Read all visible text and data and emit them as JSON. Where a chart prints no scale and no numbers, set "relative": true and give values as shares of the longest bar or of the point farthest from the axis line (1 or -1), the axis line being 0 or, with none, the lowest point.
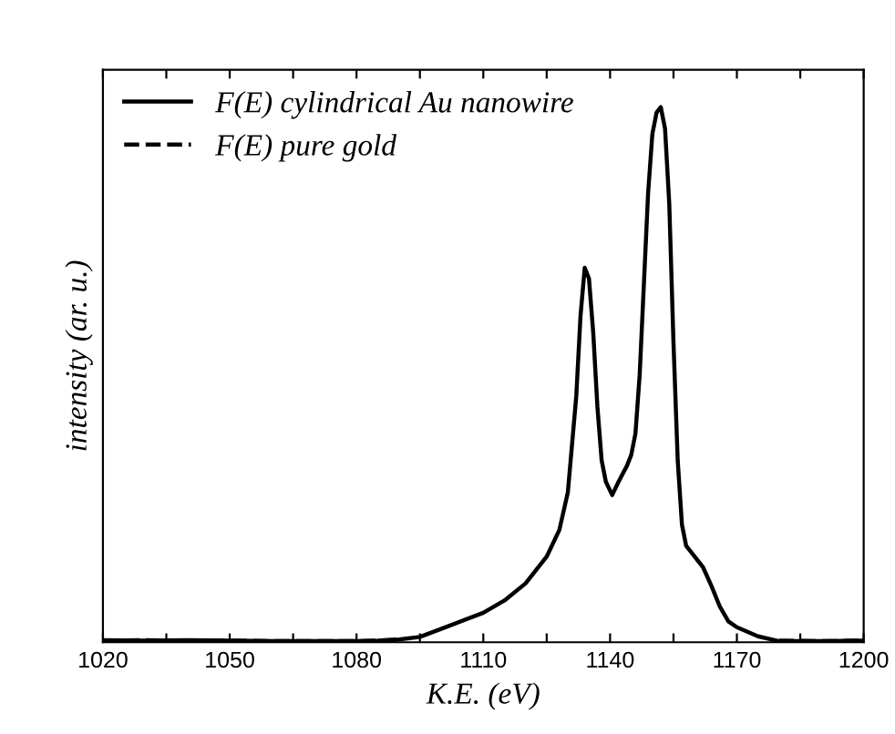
{
  "chart_data": {
    "type": "line",
    "relative": true,
    "xlabel": "K.E. (eV)",
    "ylabel": "intensity (ar. u.)",
    "xlim": [
      1020,
      1200
    ],
    "xticks": [
      1020,
      {
        "value": 1035,
        "label": null
      },
      1050,
      {
        "value": 1065,
        "label": null
      },
      1080,
      {
        "value": 1095,
        "label": null
      },
      1110,
      {
        "value": 1125,
        "label": null
      },
      1140,
      {
        "value": 1155,
        "label": null
      },
      1170,
      {
        "value": 1185,
        "label": null
      },
      1200
    ],
    "legend": "top left",
    "grid": false,
    "series": [
      {
        "name": "F(E) cylindrical Au nanowire",
        "color": "#000000",
        "line_style": "solid",
        "x": [
          1020,
          1030,
          1040,
          1050,
          1060,
          1070,
          1080,
          1085,
          1090,
          1095,
          1100,
          1110,
          1115,
          1120,
          1125,
          1128,
          1130,
          1132,
          1133,
          1134,
          1135,
          1136,
          1137,
          1138,
          1139,
          1140.5,
          1142,
          1144,
          1145,
          1146,
          1147,
          1148,
          1149,
          1150,
          1151,
          1152,
          1153,
          1154,
          1155,
          1156,
          1157,
          1158,
          1160,
          1162,
          1164,
          1166,
          1168,
          1170,
          1175,
          1180,
          1190,
          1200
        ],
        "values": [
          0.004,
          0.003,
          0.004,
          0.003,
          0.002,
          0.002,
          0.002,
          0.003,
          0.005,
          0.01,
          0.025,
          0.055,
          0.078,
          0.11,
          0.16,
          0.21,
          0.28,
          0.46,
          0.61,
          0.7,
          0.68,
          0.58,
          0.44,
          0.34,
          0.3,
          0.275,
          0.3,
          0.33,
          0.35,
          0.39,
          0.5,
          0.67,
          0.84,
          0.95,
          0.99,
          1.0,
          0.96,
          0.82,
          0.56,
          0.34,
          0.22,
          0.18,
          0.16,
          0.14,
          0.105,
          0.066,
          0.039,
          0.028,
          0.011,
          0.002,
          0.002,
          0.003
        ]
      },
      {
        "name": "F(E) pure gold",
        "color": "#000000",
        "line_style": "dashed",
        "x": [
          1020,
          1030,
          1040,
          1050,
          1060,
          1070,
          1080,
          1085,
          1090,
          1135,
          1180,
          1190,
          1200
        ],
        "values": [
          0.003,
          0.004,
          0.003,
          0.003,
          0.002,
          0.002,
          0.002,
          0.003,
          0.005,
          null,
          0.003,
          0.002,
          0.003
        ]
      }
    ]
  }
}
